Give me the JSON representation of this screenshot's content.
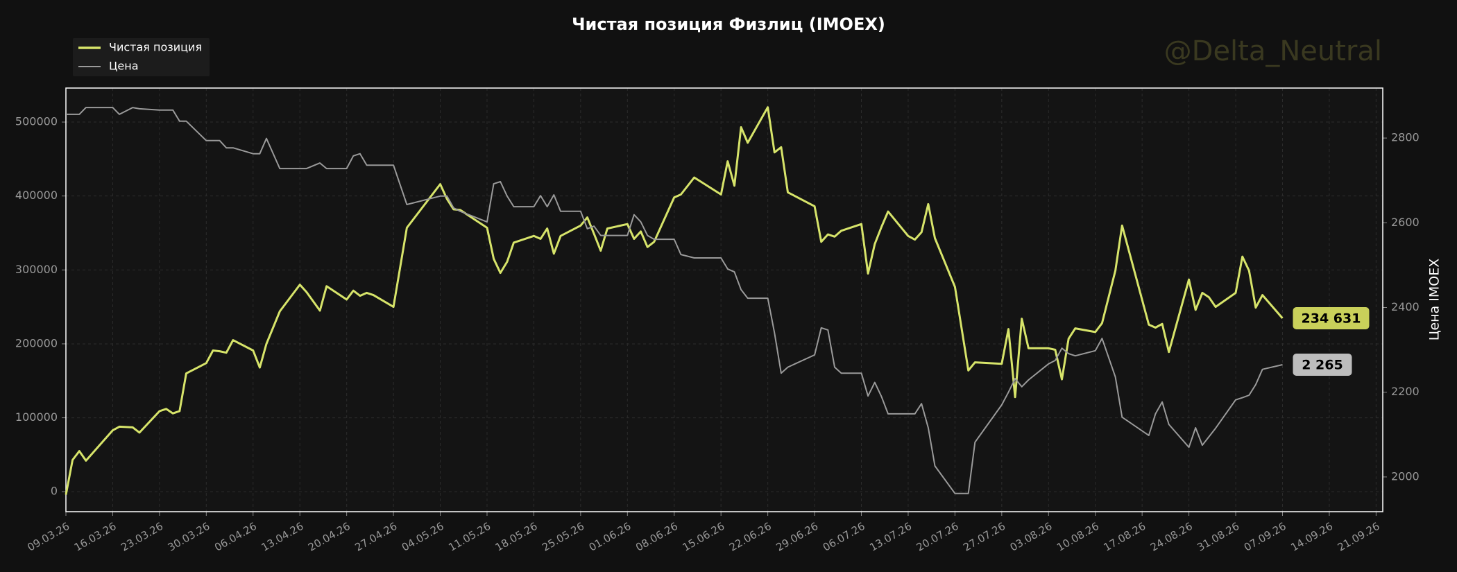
{
  "chart_data": {
    "type": "line",
    "title": "Чистая позиция Физлиц (IMOEX)",
    "watermark": "@Delta_Neutral",
    "y2_label": "Цена IMOEX",
    "legend": "upper left",
    "grid": true,
    "x": [
      "09.03.26",
      "10.03.26",
      "11.03.26",
      "12.03.26",
      "16.03.26",
      "17.03.26",
      "19.03.26",
      "20.03.26",
      "23.03.26",
      "24.03.26",
      "25.03.26",
      "26.03.26",
      "27.03.26",
      "30.03.26",
      "31.03.26",
      "01.04.26",
      "02.04.26",
      "03.04.26",
      "06.04.26",
      "07.04.26",
      "08.04.26",
      "10.04.26",
      "13.04.26",
      "14.04.26",
      "16.04.26",
      "17.04.26",
      "20.04.26",
      "21.04.26",
      "22.04.26",
      "23.04.26",
      "24.04.26",
      "27.04.26",
      "29.04.26",
      "04.05.26",
      "05.05.26",
      "06.05.26",
      "07.05.26",
      "11.05.26",
      "12.05.26",
      "13.05.26",
      "14.05.26",
      "15.05.26",
      "18.05.26",
      "19.05.26",
      "20.05.26",
      "21.05.26",
      "22.05.26",
      "25.05.26",
      "26.05.26",
      "27.05.26",
      "28.05.26",
      "29.05.26",
      "01.06.26",
      "02.06.26",
      "03.06.26",
      "04.06.26",
      "05.06.26",
      "08.06.26",
      "09.06.26",
      "11.06.26",
      "15.06.26",
      "16.06.26",
      "17.06.26",
      "18.06.26",
      "19.06.26",
      "22.06.26",
      "23.06.26",
      "24.06.26",
      "25.06.26",
      "29.06.26",
      "30.06.26",
      "01.07.26",
      "02.07.26",
      "03.07.26",
      "06.07.26",
      "07.07.26",
      "08.07.26",
      "09.07.26",
      "10.07.26",
      "13.07.26",
      "14.07.26",
      "15.07.26",
      "16.07.26",
      "17.07.26",
      "20.07.26",
      "22.07.26",
      "23.07.26",
      "27.07.26",
      "28.07.26",
      "29.07.26",
      "30.07.26",
      "31.07.26",
      "03.08.26",
      "04.08.26",
      "05.08.26",
      "06.08.26",
      "07.08.26",
      "10.08.26",
      "11.08.26",
      "13.08.26",
      "14.08.26",
      "18.08.26",
      "19.08.26",
      "20.08.26",
      "21.08.26",
      "24.08.26",
      "25.08.26",
      "26.08.26",
      "27.08.26",
      "28.08.26",
      "31.08.26",
      "01.09.26",
      "02.09.26",
      "03.09.26",
      "04.09.26",
      "07.09.26"
    ],
    "xlim": [
      "09.03.26",
      "22.09.26"
    ],
    "xticks": [
      "09.03.26",
      "16.03.26",
      "23.03.26",
      "30.03.26",
      "06.04.26",
      "13.04.26",
      "20.04.26",
      "27.04.26",
      "04.05.26",
      "11.05.26",
      "18.05.26",
      "25.05.26",
      "01.06.26",
      "08.06.26",
      "15.06.26",
      "22.06.26",
      "29.06.26",
      "06.07.26",
      "13.07.26",
      "20.07.26",
      "27.07.26",
      "03.08.26",
      "10.08.26",
      "17.08.26",
      "24.08.26",
      "31.08.26",
      "07.09.26",
      "14.09.26",
      "21.09.26"
    ],
    "ylim": [
      -27000,
      546000
    ],
    "yticks": [
      0,
      100000,
      200000,
      300000,
      400000,
      500000
    ],
    "y2lim": [
      1918,
      2918
    ],
    "y2ticks": [
      2000,
      2200,
      2400,
      2600,
      2800
    ],
    "series": [
      {
        "name": "Чистая позиция",
        "color": "#d7e46a",
        "end_label": "234 631",
        "values": [
          -4000,
          43000,
          55000,
          42000,
          83000,
          88000,
          87000,
          80000,
          109000,
          112000,
          106000,
          109000,
          160000,
          174000,
          191000,
          190000,
          188000,
          205000,
          191000,
          168000,
          200000,
          244000,
          280000,
          270000,
          245000,
          278000,
          260000,
          272000,
          265000,
          269000,
          266000,
          250000,
          357000,
          416000,
          396000,
          382000,
          381000,
          357000,
          315000,
          296000,
          311000,
          337000,
          346000,
          342000,
          356000,
          322000,
          346000,
          360000,
          371000,
          349000,
          326000,
          356000,
          362000,
          342000,
          352000,
          331000,
          338000,
          398000,
          402000,
          425000,
          402000,
          447000,
          414000,
          493000,
          472000,
          520000,
          459000,
          466000,
          405000,
          386000,
          338000,
          348000,
          345000,
          353000,
          362000,
          295000,
          335000,
          358000,
          379000,
          346000,
          341000,
          351000,
          389000,
          343000,
          277000,
          164000,
          175000,
          173000,
          220000,
          128000,
          234000,
          194000,
          194000,
          192000,
          152000,
          207000,
          221000,
          216000,
          228000,
          299000,
          360000,
          226000,
          222000,
          227000,
          189000,
          287000,
          246000,
          269000,
          263000,
          250000,
          269000,
          318000,
          299000,
          249000,
          266000,
          234631
        ]
      },
      {
        "name": "Цена",
        "color": "#9a9a9a",
        "axis": "y2",
        "end_label": "2 265",
        "values": [
          2856,
          2856,
          2856,
          2872,
          2872,
          2856,
          2872,
          2869,
          2866,
          2866,
          2866,
          2840,
          2840,
          2794,
          2794,
          2794,
          2777,
          2777,
          2763,
          2763,
          2799,
          2728,
          2728,
          2728,
          2741,
          2728,
          2728,
          2758,
          2763,
          2736,
          2736,
          2736,
          2643,
          2663,
          2663,
          2635,
          2627,
          2602,
          2692,
          2697,
          2663,
          2638,
          2638,
          2664,
          2638,
          2666,
          2627,
          2627,
          2586,
          2592,
          2570,
          2570,
          2570,
          2619,
          2602,
          2570,
          2561,
          2561,
          2525,
          2517,
          2517,
          2491,
          2484,
          2442,
          2422,
          2422,
          2340,
          2245,
          2259,
          2288,
          2352,
          2347,
          2259,
          2245,
          2245,
          2191,
          2223,
          2190,
          2149,
          2149,
          2149,
          2173,
          2116,
          2026,
          1961,
          1961,
          2082,
          2170,
          2200,
          2232,
          2213,
          2229,
          2267,
          2275,
          2304,
          2291,
          2286,
          2298,
          2327,
          2236,
          2141,
          2098,
          2149,
          2177,
          2124,
          2070,
          2116,
          2075,
          2095,
          2115,
          2182,
          2187,
          2193,
          2218,
          2254,
          2265
        ]
      }
    ]
  }
}
